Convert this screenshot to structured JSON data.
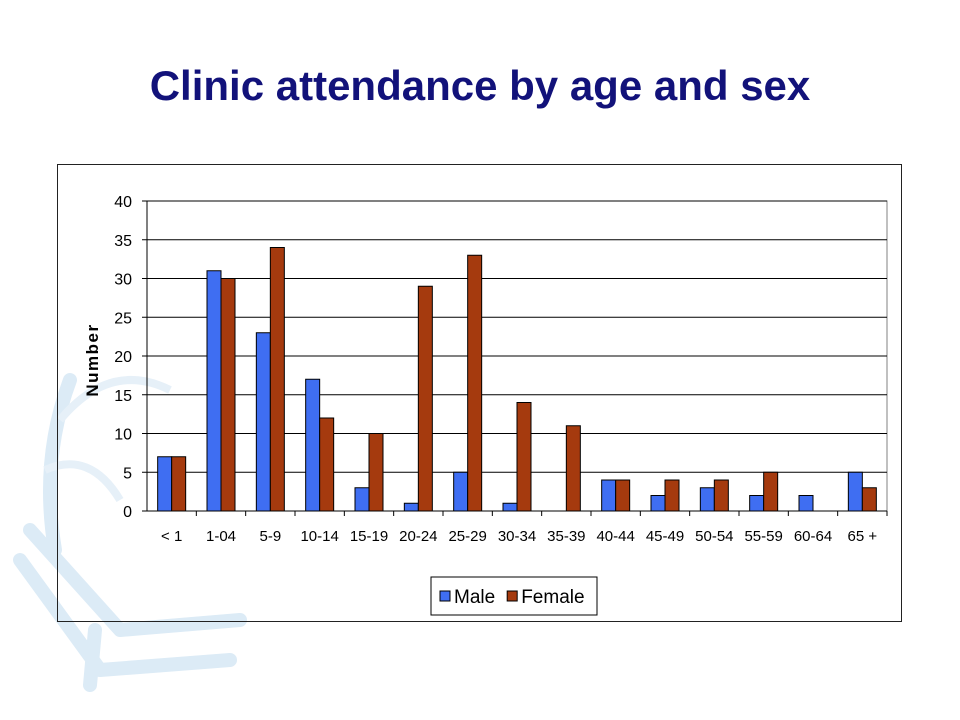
{
  "slide": {
    "title": "Clinic attendance by age and sex"
  },
  "chart_data": {
    "type": "bar",
    "ylabel": "Number",
    "xlabel": "",
    "ylim": [
      0,
      40
    ],
    "yticks": [
      0,
      5,
      10,
      15,
      20,
      25,
      30,
      35,
      40
    ],
    "grid": true,
    "legend_position": "bottom",
    "categories": [
      "< 1",
      "1-04",
      "5-9",
      "10-14",
      "15-19",
      "20-24",
      "25-29",
      "30-34",
      "35-39",
      "40-44",
      "45-49",
      "50-54",
      "55-59",
      "60-64",
      "65 +"
    ],
    "series": [
      {
        "name": "Male",
        "color": "#3f6ef2",
        "values": [
          7,
          31,
          23,
          17,
          3,
          1,
          5,
          1,
          0,
          4,
          2,
          3,
          2,
          2,
          5
        ]
      },
      {
        "name": "Female",
        "color": "#a53a0e",
        "values": [
          7,
          30,
          34,
          12,
          10,
          29,
          33,
          14,
          11,
          4,
          4,
          4,
          5,
          0,
          3
        ]
      }
    ]
  },
  "colors": {
    "title": "#12127a",
    "decoration": "#dcebf6"
  }
}
